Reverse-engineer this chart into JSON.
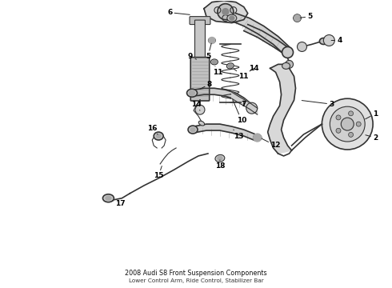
{
  "title": "2008 Audi S8 Front Suspension Components",
  "subtitle": "Lower Control Arm, Ride Control, Stabilizer Bar",
  "bg_color": "#ffffff",
  "line_color": "#333333",
  "label_color": "#000000",
  "fig_width": 4.9,
  "fig_height": 3.6,
  "dpi": 100,
  "labels_info": [
    [
      "1",
      4.62,
      2.18,
      4.45,
      2.18
    ],
    [
      "2",
      4.62,
      1.9,
      4.45,
      1.9
    ],
    [
      "3",
      4.05,
      2.3,
      3.85,
      2.35
    ],
    [
      "4",
      4.3,
      3.05,
      4.0,
      2.98
    ],
    [
      "5",
      3.78,
      3.4,
      3.6,
      3.32
    ],
    [
      "5",
      2.72,
      2.88,
      2.85,
      2.98
    ],
    [
      "6",
      2.15,
      3.38,
      2.35,
      3.38
    ],
    [
      "7",
      3.05,
      2.32,
      3.0,
      2.45
    ],
    [
      "8",
      2.72,
      2.52,
      2.88,
      2.52
    ],
    [
      "9",
      2.45,
      2.85,
      2.58,
      2.85
    ],
    [
      "10",
      3.05,
      2.08,
      3.0,
      2.18
    ],
    [
      "11",
      2.75,
      2.72,
      2.82,
      2.82
    ],
    [
      "11",
      3.05,
      2.68,
      3.12,
      2.72
    ],
    [
      "12",
      3.42,
      1.72,
      3.32,
      1.8
    ],
    [
      "13",
      3.0,
      1.9,
      3.05,
      2.0
    ],
    [
      "14",
      3.18,
      2.7,
      3.1,
      2.62
    ],
    [
      "14",
      2.55,
      2.35,
      2.52,
      2.28
    ],
    [
      "15",
      2.02,
      1.42,
      2.05,
      1.55
    ],
    [
      "16",
      1.92,
      1.85,
      1.95,
      1.98
    ],
    [
      "17",
      1.55,
      1.12,
      1.68,
      1.22
    ],
    [
      "18",
      2.78,
      1.48,
      2.72,
      1.6
    ]
  ]
}
